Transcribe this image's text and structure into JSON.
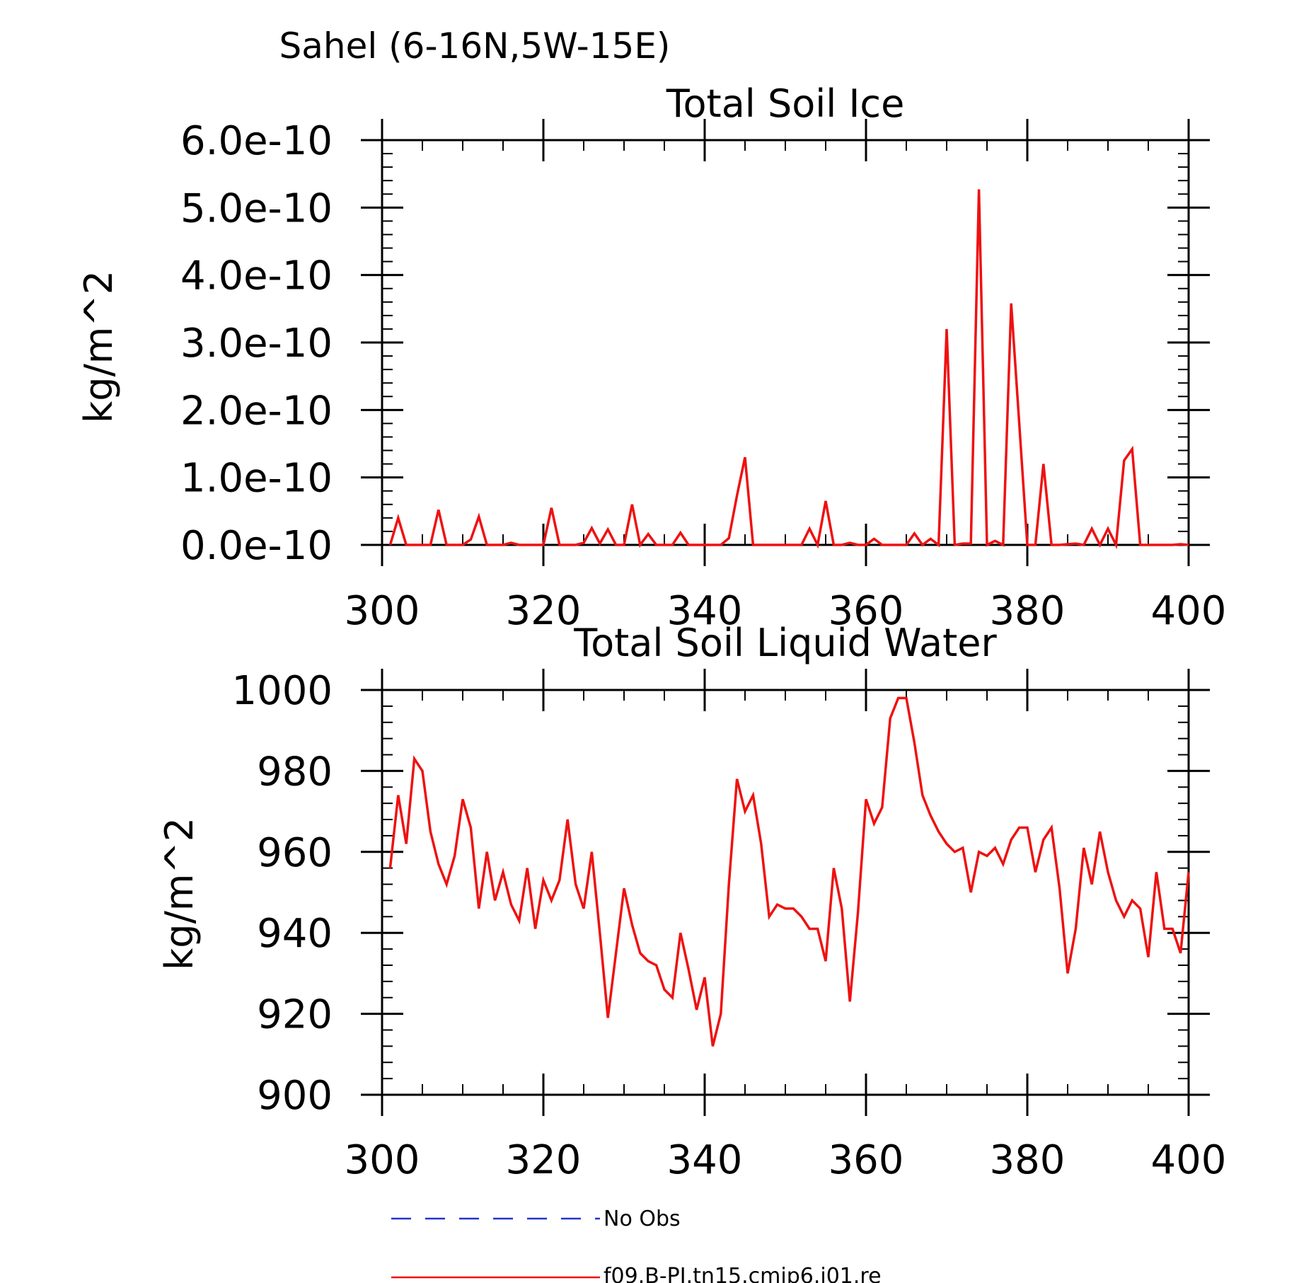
{
  "figure": {
    "suptitle": "Sahel (6-16N,5W-15E)"
  },
  "chart_data": [
    {
      "type": "line",
      "title": "Total Soil Ice",
      "xlabel": "",
      "ylabel": "kg/m^2",
      "xlim": [
        300,
        400
      ],
      "ylim": [
        0,
        6e-10
      ],
      "xticks": [
        300,
        320,
        340,
        360,
        380,
        400
      ],
      "xtick_labels": [
        "300",
        "320",
        "340",
        "360",
        "380",
        "400"
      ],
      "yticks": [
        0,
        1e-10,
        2e-10,
        3e-10,
        4e-10,
        5e-10,
        6e-10
      ],
      "ytick_labels": [
        "0.0e-10",
        "1.0e-10",
        "2.0e-10",
        "3.0e-10",
        "4.0e-10",
        "5.0e-10",
        "6.0e-10"
      ],
      "grid": false,
      "series": [
        {
          "name": "f09.B-PI.tn15.cmip6.j01.re",
          "color": "#ee1111",
          "x": [
            301,
            302,
            303,
            304,
            305,
            306,
            307,
            308,
            309,
            310,
            311,
            312,
            313,
            314,
            315,
            316,
            317,
            318,
            319,
            320,
            321,
            322,
            323,
            324,
            325,
            326,
            327,
            328,
            329,
            330,
            331,
            332,
            333,
            334,
            335,
            336,
            337,
            338,
            339,
            340,
            341,
            342,
            343,
            344,
            345,
            346,
            347,
            348,
            349,
            350,
            351,
            352,
            353,
            354,
            355,
            356,
            357,
            358,
            359,
            360,
            361,
            362,
            363,
            364,
            365,
            366,
            367,
            368,
            369,
            370,
            371,
            372,
            373,
            374,
            375,
            376,
            377,
            378,
            379,
            380,
            381,
            382,
            383,
            384,
            385,
            386,
            387,
            388,
            389,
            390,
            391,
            392,
            393,
            394,
            395,
            396,
            397,
            398,
            399,
            400
          ],
          "y": [
            0,
            4e-11,
            0,
            0,
            0,
            0,
            5.2e-11,
            0,
            0,
            0,
            8e-12,
            4.2e-11,
            0,
            0,
            0,
            3e-12,
            0,
            0,
            0,
            0,
            5.5e-11,
            0,
            0,
            0,
            3e-12,
            2.5e-11,
            2e-12,
            2.3e-11,
            0,
            0,
            6e-11,
            0,
            1.6e-11,
            0,
            0,
            0,
            1.8e-11,
            0,
            0,
            0,
            0,
            0,
            1e-11,
            7.3e-11,
            1.3e-10,
            0,
            0,
            0,
            0,
            0,
            0,
            0,
            2.4e-11,
            0,
            6.5e-11,
            0,
            0,
            3e-12,
            0,
            0,
            9e-12,
            0,
            0,
            0,
            0,
            1.7e-11,
            0,
            9e-12,
            0,
            3.2e-10,
            0,
            2e-12,
            2e-12,
            5.27e-10,
            0,
            6e-12,
            0,
            3.58e-10,
            1.8e-10,
            0,
            0,
            1.2e-10,
            0,
            0,
            1e-12,
            2e-12,
            0,
            2.4e-11,
            0,
            2.4e-11,
            0,
            1.25e-10,
            1.42e-10,
            0,
            0,
            0,
            0,
            0,
            1e-12,
            0
          ]
        }
      ]
    },
    {
      "type": "line",
      "title": "Total Soil Liquid Water",
      "xlabel": "",
      "ylabel": "kg/m^2",
      "xlim": [
        300,
        400
      ],
      "ylim": [
        900,
        1000
      ],
      "xticks": [
        300,
        320,
        340,
        360,
        380,
        400
      ],
      "xtick_labels": [
        "300",
        "320",
        "340",
        "360",
        "380",
        "400"
      ],
      "yticks": [
        900,
        920,
        940,
        960,
        980,
        1000
      ],
      "ytick_labels": [
        "900",
        "920",
        "940",
        "960",
        "980",
        "1000"
      ],
      "grid": false,
      "series": [
        {
          "name": "f09.B-PI.tn15.cmip6.j01.re",
          "color": "#ee1111",
          "x": [
            301,
            302,
            303,
            304,
            305,
            306,
            307,
            308,
            309,
            310,
            311,
            312,
            313,
            314,
            315,
            316,
            317,
            318,
            319,
            320,
            321,
            322,
            323,
            324,
            325,
            326,
            327,
            328,
            329,
            330,
            331,
            332,
            333,
            334,
            335,
            336,
            337,
            338,
            339,
            340,
            341,
            342,
            343,
            344,
            345,
            346,
            347,
            348,
            349,
            350,
            351,
            352,
            353,
            354,
            355,
            356,
            357,
            358,
            359,
            360,
            361,
            362,
            363,
            364,
            365,
            366,
            367,
            368,
            369,
            370,
            371,
            372,
            373,
            374,
            375,
            376,
            377,
            378,
            379,
            380,
            381,
            382,
            383,
            384,
            385,
            386,
            387,
            388,
            389,
            390,
            391,
            392,
            393,
            394,
            395,
            396,
            397,
            398,
            399,
            400
          ],
          "y": [
            956,
            974,
            962,
            983,
            980,
            965,
            957,
            952,
            959,
            973,
            966,
            946,
            960,
            948,
            955,
            947,
            943,
            956,
            941,
            953,
            948,
            953,
            968,
            952,
            946,
            960,
            940,
            919,
            935,
            951,
            942,
            935,
            933,
            932,
            926,
            924,
            940,
            931,
            921,
            929,
            912,
            920,
            952,
            978,
            970,
            974,
            962,
            944,
            947,
            946,
            946,
            944,
            941,
            941,
            933,
            956,
            946,
            923,
            945,
            973,
            967,
            971,
            993,
            998,
            998,
            987,
            974,
            969,
            965,
            962,
            960,
            961,
            950,
            960,
            959,
            961,
            957,
            963,
            966,
            966,
            955,
            963,
            966,
            951,
            930,
            941,
            961,
            952,
            965,
            955,
            948,
            944,
            948,
            946,
            934,
            955,
            941,
            941,
            935,
            955
          ]
        }
      ]
    }
  ],
  "legend": {
    "placement": "bottom",
    "items": [
      {
        "label": "No Obs",
        "color": "#2233cc",
        "style": "dashed"
      },
      {
        "label": "f09.B-PI.tn15.cmip6.j01.re",
        "color": "#ee1111",
        "style": "solid"
      }
    ]
  }
}
